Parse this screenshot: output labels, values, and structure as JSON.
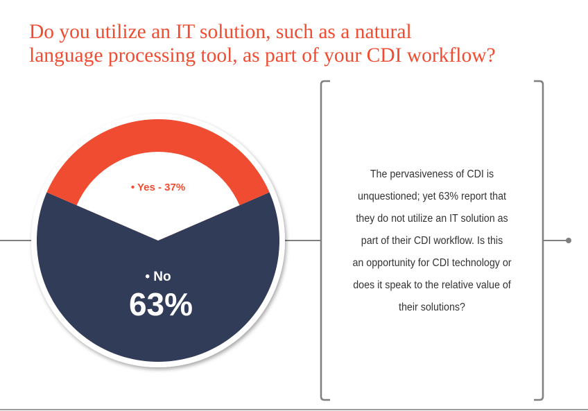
{
  "title_lines": [
    "Do you utilize an IT solution, such as a natural",
    "language processing tool, as part of your CDI workflow?"
  ],
  "chart_data": {
    "type": "pie",
    "categories": [
      "Yes",
      "No"
    ],
    "values": [
      37,
      63
    ],
    "labels": {
      "yes": "• Yes - 37%",
      "no_name": "• No",
      "no_value": "63%"
    },
    "colors": {
      "yes": "#f04c31",
      "no": "#313c59"
    }
  },
  "callout_lines": [
    "The pervasiveness of CDI is",
    "unquestioned; yet 63% report that",
    "they do not utilize an IT solution as",
    "part of their CDI workflow.  Is this",
    "an opportunity for CDI technology or",
    "does it speak to the relative value of",
    "their solutions?"
  ],
  "colors": {
    "accent": "#f04c31",
    "text": "#333333",
    "frame": "#7f7f7f"
  }
}
